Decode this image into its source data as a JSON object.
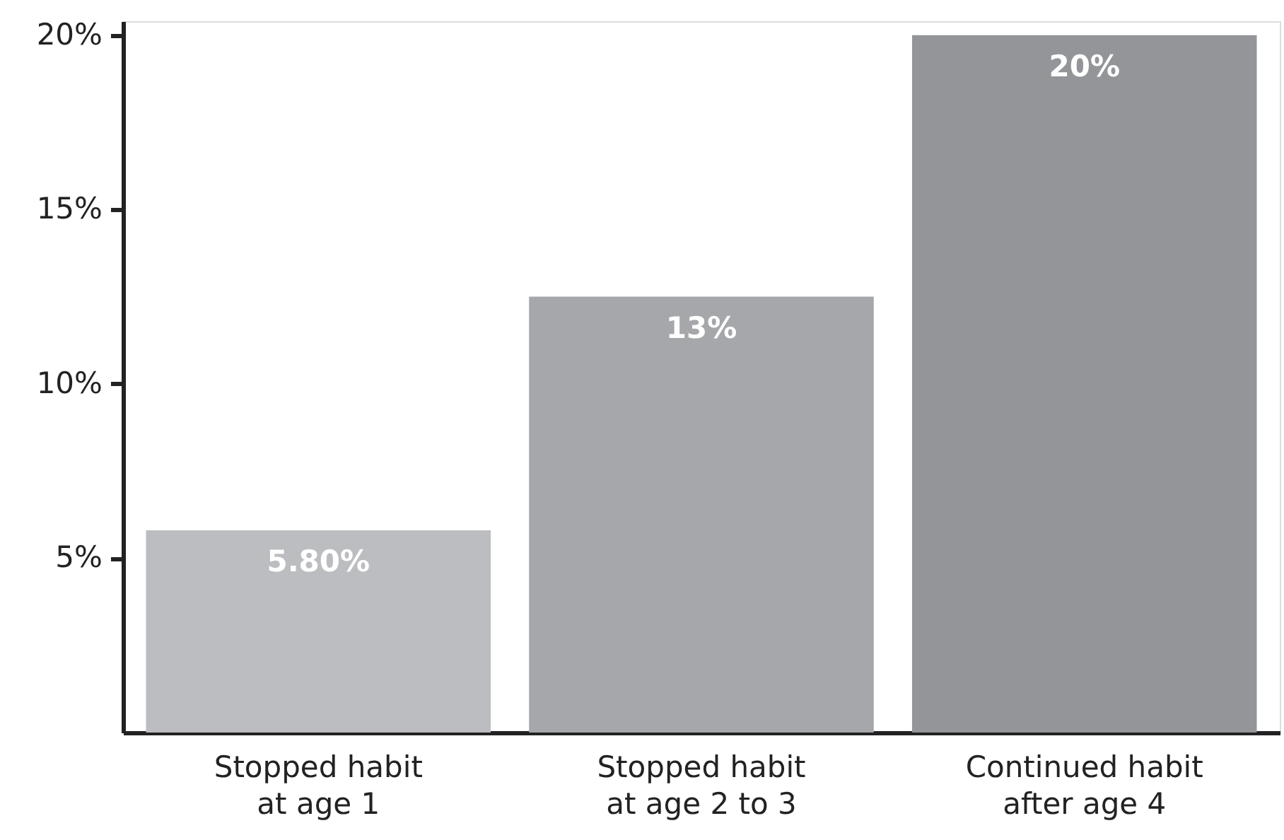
{
  "chart_data": {
    "type": "bar",
    "categories": [
      "Stopped habit\nat age 1",
      "Stopped habit\nat age 2 to 3",
      "Continued habit\nafter age 4"
    ],
    "values": [
      5.8,
      12.5,
      20
    ],
    "colors": [
      "#bcbdc0",
      "#a6a7ab",
      "#939598"
    ],
    "value_labels": [
      "5.80%",
      "13%",
      "20%"
    ],
    "ylim": [
      0,
      20.4
    ],
    "yticks": [
      {
        "value": 5,
        "label": "5%"
      },
      {
        "value": 10,
        "label": "10%"
      },
      {
        "value": 15,
        "label": "15%"
      },
      {
        "value": 20,
        "label": "20%"
      }
    ],
    "grid": false
  }
}
